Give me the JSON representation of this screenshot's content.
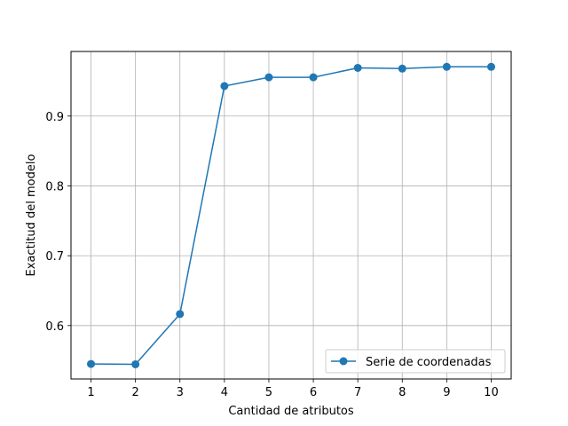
{
  "chart_data": {
    "type": "line",
    "title": "",
    "xlabel": "Cantidad de atributos",
    "ylabel": "Exactitud del modelo",
    "x": [
      1,
      2,
      3,
      4,
      5,
      6,
      7,
      8,
      9,
      10
    ],
    "xlim": [
      0.55,
      10.45
    ],
    "ylim": [
      0.5235,
      0.9925
    ],
    "xticks": [
      "1",
      "2",
      "3",
      "4",
      "5",
      "6",
      "7",
      "8",
      "9",
      "10"
    ],
    "yticks": [
      0.6,
      0.7,
      0.8,
      0.9
    ],
    "ytick_labels": [
      "0.6",
      "0.7",
      "0.8",
      "0.9"
    ],
    "grid": true,
    "legend_position": "lower-right",
    "series": [
      {
        "name": "Serie de coordenadas",
        "color": "#1f77b4",
        "marker": "circle",
        "values": [
          0.545,
          0.5445,
          0.6165,
          0.943,
          0.9555,
          0.9555,
          0.969,
          0.968,
          0.9705,
          0.9705
        ]
      }
    ]
  }
}
